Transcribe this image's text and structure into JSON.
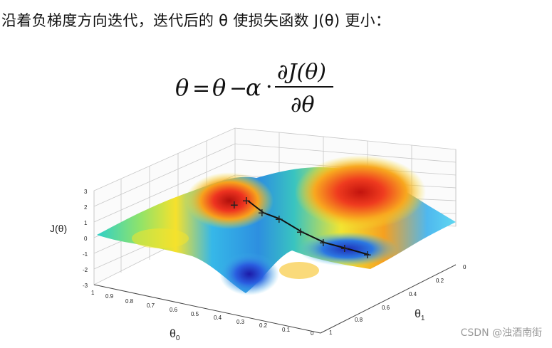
{
  "heading": "沿着负梯度方向迭代，迭代后的 θ 使损失函数 J(θ) 更小：",
  "formula": {
    "lhs": "θ",
    "equals": "=",
    "theta": "θ",
    "minus": "−",
    "alpha": "α",
    "dot": "·",
    "numerator": "∂J(θ)",
    "denominator": "∂θ"
  },
  "plot": {
    "z_label": "J(θ)",
    "x_label": "θ",
    "x_sub": "0",
    "y_label": "θ",
    "y_sub": "1",
    "z_ticks": [
      "3",
      "2",
      "1",
      "0",
      "-1",
      "-2",
      "-3"
    ],
    "x_ticks": [
      "1",
      "0.9",
      "0.8",
      "0.7",
      "0.6",
      "0.5",
      "0.4",
      "0.3",
      "0.2",
      "0.1",
      "0"
    ],
    "y_ticks": [
      "0",
      "0.2",
      "0.4",
      "0.6",
      "0.8",
      "1"
    ],
    "path_markers": 8
  },
  "watermark": "CSDN @浊酒南街",
  "colors": {
    "high": "#e0201a",
    "mid": "#f4e62a",
    "low": "#2a6fe0",
    "path": "#111111"
  }
}
